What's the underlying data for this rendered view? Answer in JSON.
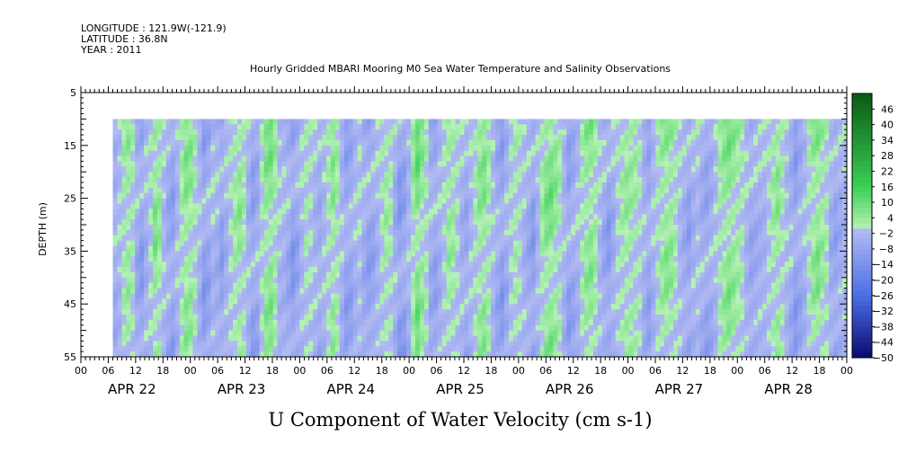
{
  "header": {
    "longitude": "LONGITUDE : 121.9W(-121.9)",
    "latitude": "LATITUDE : 36.8N",
    "year": "YEAR : 2011",
    "title": "Hourly Gridded MBARI Mooring M0 Sea Water Temperature and Salinity Observations"
  },
  "chart_data": {
    "type": "heatmap",
    "title": "Hourly Gridded MBARI Mooring M0 Sea Water Temperature and Salinity Observations",
    "xlabel": "",
    "ylabel": "DEPTH (m)",
    "colorbar_title": "U Component of Water Velocity (cm s-1)",
    "ylim": [
      55,
      5
    ],
    "y_ticks": [
      5,
      15,
      25,
      35,
      45,
      55
    ],
    "x_hour_ticks": [
      "00",
      "06",
      "12",
      "18",
      "00",
      "06",
      "12",
      "18",
      "00",
      "06",
      "12",
      "18",
      "00",
      "06",
      "12",
      "18",
      "00",
      "06",
      "12",
      "18",
      "00",
      "06",
      "12",
      "18",
      "00",
      "06",
      "12",
      "18",
      "00"
    ],
    "x_day_labels": [
      "APR 22",
      "APR 23",
      "APR 24",
      "APR 25",
      "APR 26",
      "APR 27",
      "APR 28"
    ],
    "data_start": "APR 22 07:00",
    "data_end": "APR 29 00:00",
    "depth_range": [
      10,
      55
    ],
    "colorbar_ticks": [
      46,
      40,
      34,
      28,
      22,
      16,
      10,
      4,
      -2,
      -8,
      -14,
      -20,
      -26,
      -32,
      -38,
      -44,
      -50
    ],
    "colorbar_range": [
      -50,
      52
    ],
    "colormap": {
      "strong_negative": "#0a0a6e",
      "negative": "#4a6ee6",
      "near_zero_negative": "#b4bcf2",
      "near_zero_positive": "#b6f2b6",
      "positive": "#3ccf56",
      "strong_positive": "#0a5a14"
    },
    "column_means_cm_s": [
      -4,
      -2,
      3,
      5,
      2,
      -6,
      -9,
      -4,
      0,
      8,
      5,
      -2,
      -6,
      -8,
      -3,
      3,
      7,
      6,
      2,
      -3,
      -9,
      -7,
      -3,
      -4,
      -8,
      -4,
      0,
      4,
      6,
      3,
      -4,
      -8,
      -6,
      1,
      7,
      8,
      4,
      -2,
      -3,
      -6,
      -10,
      -7,
      -2,
      2,
      0,
      -3,
      -5,
      -2,
      2,
      6,
      3,
      -3,
      -8,
      -7,
      -3,
      -1,
      -5,
      -8,
      -7,
      -3,
      1,
      4,
      2,
      -5,
      -10,
      -8,
      -3,
      5,
      10,
      6,
      2,
      -5,
      -7,
      -4,
      0,
      5,
      4,
      0,
      -4,
      -6,
      -2,
      2,
      6,
      7,
      3,
      -2,
      -6,
      -9,
      -5,
      0,
      3,
      1,
      -3,
      -6,
      -9,
      -3,
      4,
      8,
      9,
      6,
      3,
      -3,
      -8,
      -6,
      -3,
      2,
      6,
      7,
      4,
      -2,
      -6,
      -9,
      -5,
      0,
      3,
      5,
      4,
      3,
      1,
      -4,
      -7,
      -3,
      1,
      5,
      7,
      6,
      3,
      -2,
      -5,
      -8,
      -4,
      -2,
      -5,
      -7,
      -5,
      -2,
      3,
      6,
      8,
      6,
      4,
      2,
      -3,
      -6,
      -5,
      -4,
      -3,
      0,
      4,
      6,
      2,
      -2,
      -5,
      -9,
      -6,
      -3,
      2,
      6,
      8,
      5,
      2,
      -5,
      -7,
      -5,
      -3
    ]
  }
}
